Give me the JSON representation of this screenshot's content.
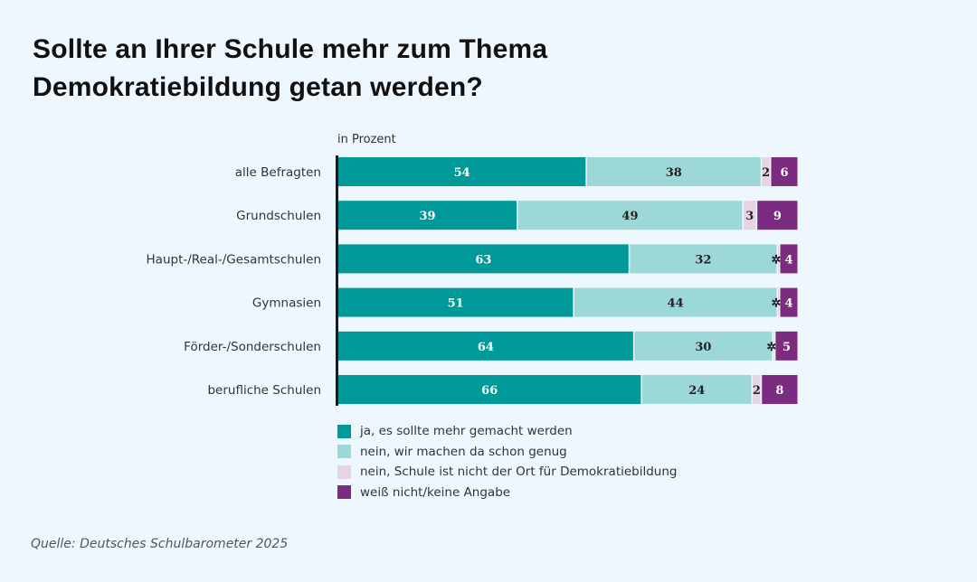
{
  "title": "Sollte an Ihrer Schule mehr zum Thema Demokratiebildung getan werden?",
  "unit_label": "in Prozent",
  "source": "Quelle: Deutsches Schulbarometer 2025",
  "small_value_marker": "✲",
  "colors": {
    "ja": "#009999",
    "genug": "#9dd8d8",
    "nicht_ort": "#e6d3e6",
    "weiss_nicht": "#7b2b80"
  },
  "chart_data": {
    "type": "bar",
    "orientation": "horizontal",
    "stacked": true,
    "title": "Sollte an Ihrer Schule mehr zum Thema Demokratiebildung getan werden?",
    "xlabel": "in Prozent",
    "ylabel": "",
    "categories": [
      "alle Befragten",
      "Grundschulen",
      "Haupt-/Real-/Gesamtschulen",
      "Gymnasien",
      "Förder-/Sonderschulen",
      "berufliche Schulen"
    ],
    "series": [
      {
        "name": "ja, es sollte mehr gemacht werden",
        "key": "ja",
        "values": [
          54,
          39,
          63,
          51,
          64,
          66
        ],
        "labels": [
          "54",
          "39",
          "63",
          "51",
          "64",
          "66"
        ]
      },
      {
        "name": "nein, wir machen da schon genug",
        "key": "genug",
        "values": [
          38,
          49,
          32,
          44,
          30,
          24
        ],
        "labels": [
          "38",
          "49",
          "32",
          "44",
          "30",
          "24"
        ]
      },
      {
        "name": "nein, Schule ist nicht der Ort für Demokratiebildung",
        "key": "nicht_ort",
        "values": [
          2,
          3,
          0.5,
          0.5,
          0.5,
          2
        ],
        "labels": [
          "2",
          "3",
          "✲",
          "✲",
          "✲",
          "2"
        ]
      },
      {
        "name": "weiß nicht/keine Angabe",
        "key": "weiss_nicht",
        "values": [
          6,
          9,
          4,
          4,
          5,
          8
        ],
        "labels": [
          "6",
          "9",
          "4",
          "4",
          "5",
          "8"
        ]
      }
    ],
    "legend": "bottom",
    "grid": false
  }
}
